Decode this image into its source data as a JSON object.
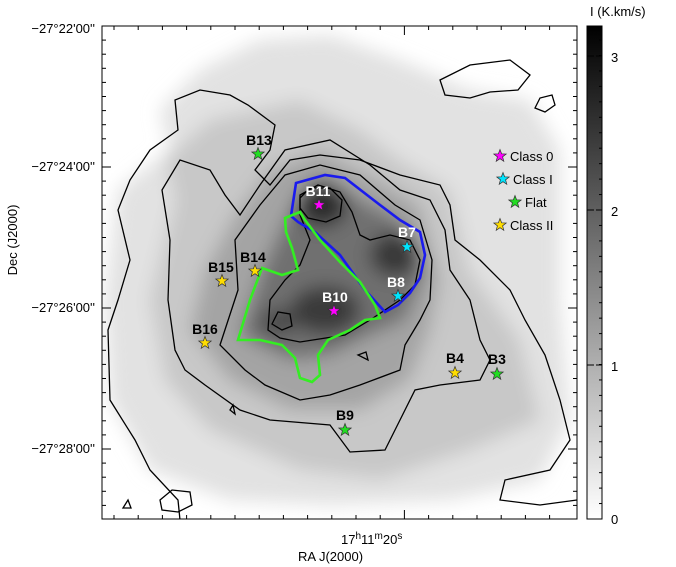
{
  "chart_data": {
    "type": "heatmap",
    "xlabel": "RA J(2000)",
    "ylabel": "Dec (J2000)",
    "colorbar_label": "I (K.km/s)",
    "colorbar_ticks": [
      "0",
      "1",
      "2",
      "3"
    ],
    "colorbar_range": [
      0,
      3.2
    ],
    "colormap": [
      "#ffffff",
      "#000000"
    ],
    "xticks": [
      {
        "label_h": "17",
        "label_m": "11",
        "label_s": "20"
      }
    ],
    "yticks": [
      {
        "label": "−27°22'00''",
        "dec_arcmin": -22
      },
      {
        "label": "−27°24'00''",
        "dec_arcmin": -24
      },
      {
        "label": "−27°26'00''",
        "dec_arcmin": -26
      },
      {
        "label": "−27°28'00''",
        "dec_arcmin": -28
      }
    ],
    "legend": {
      "position": "right",
      "entries": [
        {
          "label": "Class 0",
          "color": "#ff00ff"
        },
        {
          "label": "Class I",
          "color": "#00e5ff"
        },
        {
          "label": "Flat",
          "color": "#22dd22"
        },
        {
          "label": "Class II",
          "color": "#ffdd00"
        }
      ]
    },
    "sources": [
      {
        "name": "B11",
        "class": "Class 0"
      },
      {
        "name": "B10",
        "class": "Class 0"
      },
      {
        "name": "B7",
        "class": "Class I"
      },
      {
        "name": "B8",
        "class": "Class I"
      },
      {
        "name": "B13",
        "class": "Flat"
      },
      {
        "name": "B3",
        "class": "Flat"
      },
      {
        "name": "B9",
        "class": "Flat"
      },
      {
        "name": "B14",
        "class": "Class II"
      },
      {
        "name": "B15",
        "class": "Class II"
      },
      {
        "name": "B16",
        "class": "Class II"
      },
      {
        "name": "B4",
        "class": "Class II"
      }
    ],
    "regions": [
      {
        "color": "#1a1aee"
      },
      {
        "color": "#33ee22"
      }
    ],
    "grid": false
  }
}
